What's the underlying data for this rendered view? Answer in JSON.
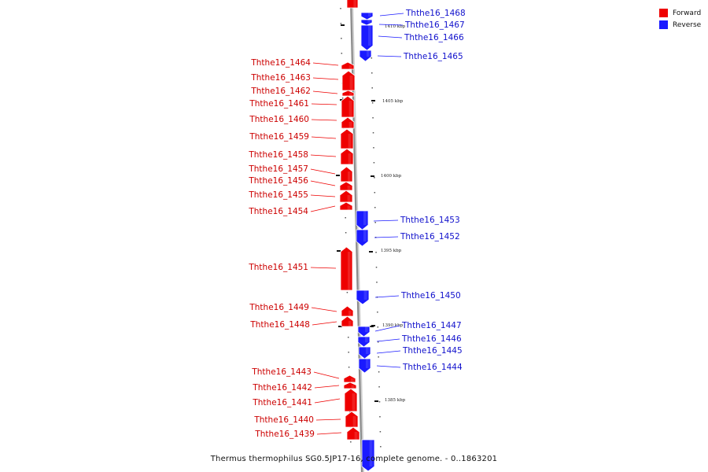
{
  "caption": "Thermus thermophilus SG0.5JP17-16, complete genome. - 0..1863201",
  "legend": [
    {
      "label": "Forward",
      "color": "#ee0000"
    },
    {
      "label": "Reverse",
      "color": "#1a1aff"
    }
  ],
  "colors": {
    "forward": "#ee0000",
    "reverse": "#1a1aff",
    "axis": "#999999"
  },
  "scale_ticks": [
    {
      "label": "1410 kbp",
      "y": 1410
    },
    {
      "label": "1405 kbp",
      "y": 1405
    },
    {
      "label": "1400 kbp",
      "y": 1400
    },
    {
      "label": "1395 kbp",
      "y": 1395
    },
    {
      "label": "1390 kbp",
      "y": 1390
    },
    {
      "label": "1385 kbp",
      "y": 1385
    }
  ],
  "genes": [
    {
      "name": "",
      "strand": "forward"
    },
    {
      "name": "Ththe16_1468",
      "strand": "reverse"
    },
    {
      "name": "Ththe16_1467",
      "strand": "reverse"
    },
    {
      "name": "Ththe16_1466",
      "strand": "reverse"
    },
    {
      "name": "Ththe16_1465",
      "strand": "reverse"
    },
    {
      "name": "Ththe16_1464",
      "strand": "forward"
    },
    {
      "name": "Ththe16_1463",
      "strand": "forward"
    },
    {
      "name": "Ththe16_1462",
      "strand": "forward"
    },
    {
      "name": "Ththe16_1461",
      "strand": "forward"
    },
    {
      "name": "Ththe16_1460",
      "strand": "forward"
    },
    {
      "name": "Ththe16_1459",
      "strand": "forward"
    },
    {
      "name": "Ththe16_1458",
      "strand": "forward"
    },
    {
      "name": "Ththe16_1457",
      "strand": "forward"
    },
    {
      "name": "Ththe16_1456",
      "strand": "forward"
    },
    {
      "name": "Ththe16_1455",
      "strand": "forward"
    },
    {
      "name": "Ththe16_1454",
      "strand": "forward"
    },
    {
      "name": "Ththe16_1453",
      "strand": "reverse"
    },
    {
      "name": "Ththe16_1452",
      "strand": "reverse"
    },
    {
      "name": "Ththe16_1451",
      "strand": "forward"
    },
    {
      "name": "Ththe16_1450",
      "strand": "reverse"
    },
    {
      "name": "Ththe16_1449",
      "strand": "forward"
    },
    {
      "name": "Ththe16_1448",
      "strand": "forward"
    },
    {
      "name": "Ththe16_1447",
      "strand": "reverse"
    },
    {
      "name": "Ththe16_1446",
      "strand": "reverse"
    },
    {
      "name": "Ththe16_1445",
      "strand": "reverse"
    },
    {
      "name": "Ththe16_1444",
      "strand": "reverse"
    },
    {
      "name": "Ththe16_1443",
      "strand": "forward"
    },
    {
      "name": "Ththe16_1442",
      "strand": "forward"
    },
    {
      "name": "Ththe16_1441",
      "strand": "forward"
    },
    {
      "name": "Ththe16_1440",
      "strand": "forward"
    },
    {
      "name": "Ththe16_1439",
      "strand": "forward"
    },
    {
      "name": "",
      "strand": "reverse"
    }
  ]
}
